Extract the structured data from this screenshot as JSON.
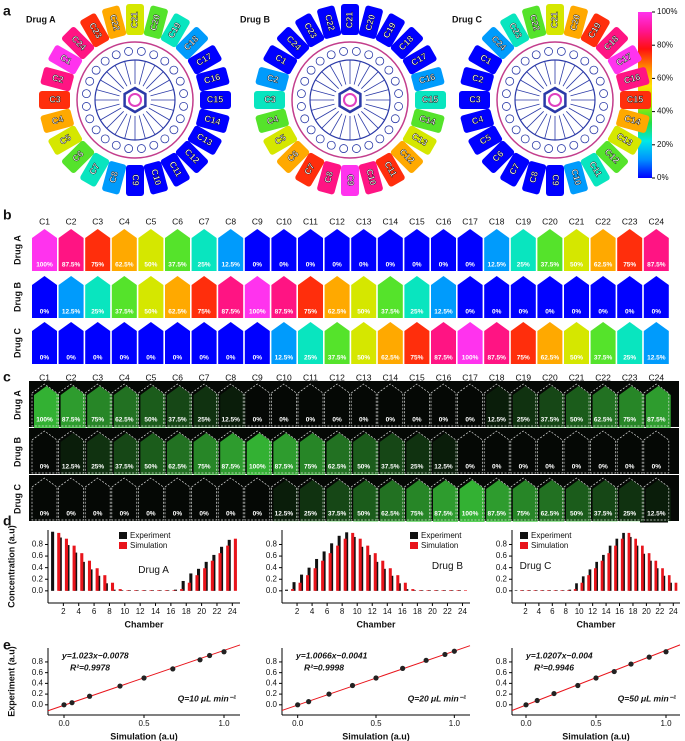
{
  "panel_labels": [
    "a",
    "b",
    "c",
    "d",
    "e"
  ],
  "drugs": [
    "Drug A",
    "Drug B",
    "Drug C"
  ],
  "chambers": [
    "C1",
    "C2",
    "C3",
    "C4",
    "C5",
    "C6",
    "C7",
    "C8",
    "C9",
    "C10",
    "C11",
    "C12",
    "C13",
    "C14",
    "C15",
    "C16",
    "C17",
    "C18",
    "C19",
    "C20",
    "C21",
    "C22",
    "C23",
    "C24"
  ],
  "concentrations": [
    [
      100,
      87.5,
      75,
      62.5,
      50,
      37.5,
      25,
      12.5,
      0,
      0,
      0,
      0,
      0,
      0,
      0,
      0,
      0,
      12.5,
      25,
      37.5,
      50,
      62.5,
      75,
      87.5
    ],
    [
      0,
      12.5,
      25,
      37.5,
      50,
      62.5,
      75,
      87.5,
      100,
      87.5,
      75,
      62.5,
      50,
      37.5,
      25,
      12.5,
      0,
      0,
      0,
      0,
      0,
      0,
      0,
      0
    ],
    [
      0,
      0,
      0,
      0,
      0,
      0,
      0,
      0,
      0,
      12.5,
      25,
      37.5,
      50,
      62.5,
      75,
      87.5,
      100,
      87.5,
      75,
      62.5,
      50,
      37.5,
      25,
      12.5
    ]
  ],
  "concentration_labels": [
    [
      "100%",
      "87.5%",
      "75%",
      "62.5%",
      "50%",
      "37.5%",
      "25%",
      "12.5%",
      "0%",
      "0%",
      "0%",
      "0%",
      "0%",
      "0%",
      "0%",
      "0%",
      "0%",
      "12.5%",
      "25%",
      "37.5%",
      "50%",
      "62.5%",
      "75%",
      "87.5%"
    ],
    [
      "0%",
      "12.5%",
      "25%",
      "37.5%",
      "50%",
      "62.5%",
      "75%",
      "87.5%",
      "100%",
      "87.5%",
      "75%",
      "62.5%",
      "50%",
      "37.5%",
      "25%",
      "12.5%",
      "0%",
      "0%",
      "0%",
      "0%",
      "0%",
      "0%",
      "0%",
      "0%"
    ],
    [
      "0%",
      "0%",
      "0%",
      "0%",
      "0%",
      "0%",
      "0%",
      "0%",
      "0%",
      "12.5%",
      "25%",
      "37.5%",
      "50%",
      "62.5%",
      "75%",
      "87.5%",
      "100%",
      "87.5%",
      "75%",
      "62.5%",
      "50%",
      "37.5%",
      "25%",
      "12.5%"
    ]
  ],
  "colorbar": {
    "lim": [
      0,
      100
    ],
    "ticks": [
      {
        "value": 0,
        "label": "0%"
      },
      {
        "value": 20,
        "label": "20%"
      },
      {
        "value": 40,
        "label": "40%"
      },
      {
        "value": 60,
        "label": "60%"
      },
      {
        "value": 80,
        "label": "80%"
      },
      {
        "value": 100,
        "label": "100%"
      }
    ],
    "colors": [
      "#0000ff",
      "#0090ff",
      "#00e8e8",
      "#22dd44",
      "#aaee00",
      "#ffe000",
      "#ff8800",
      "#ff1010",
      "#ff1493",
      "#ff33ee"
    ]
  },
  "chart_data": [
    {
      "type": "bar",
      "annotation": "Drug A",
      "xlabel": "Chamber",
      "ylabel": "Concentration (a.u)",
      "legend": "upper center",
      "x": [
        1,
        2,
        3,
        4,
        5,
        6,
        7,
        8,
        9,
        10,
        11,
        12,
        13,
        14,
        15,
        16,
        17,
        18,
        19,
        20,
        21,
        22,
        23,
        24
      ],
      "xlim": [
        0,
        25
      ],
      "xticks": [
        2,
        4,
        6,
        8,
        10,
        12,
        14,
        16,
        18,
        20,
        22,
        24
      ],
      "ylim": [
        -0.21,
        1.05
      ],
      "yticks": [
        {
          "value": 0,
          "label": "0.0"
        },
        {
          "value": 0.2,
          "label": "0.2"
        },
        {
          "value": 0.4,
          "label": "0.4"
        },
        {
          "value": 0.6,
          "label": "0.6"
        },
        {
          "value": 0.8,
          "label": "0.8"
        }
      ],
      "series": [
        {
          "name": "Experiment",
          "color": "#111111",
          "values": [
            1.02,
            0.92,
            0.79,
            0.66,
            0.5,
            0.37,
            0.26,
            0.13,
            0.02,
            0.01,
            0.01,
            0.01,
            0.01,
            0.01,
            0.01,
            0.01,
            0.02,
            0.17,
            0.3,
            0.38,
            0.5,
            0.62,
            0.76,
            0.88
          ]
        },
        {
          "name": "Simulation",
          "color": "#e8141b",
          "values": [
            1.0,
            0.9,
            0.78,
            0.65,
            0.52,
            0.39,
            0.27,
            0.14,
            0.03,
            0.01,
            0.01,
            0.01,
            0.01,
            0.01,
            0.01,
            0.01,
            0.03,
            0.14,
            0.27,
            0.39,
            0.52,
            0.65,
            0.78,
            0.9
          ]
        }
      ]
    },
    {
      "type": "bar",
      "annotation": "Drug B",
      "xlabel": "Chamber",
      "legend": "upper right",
      "x": [
        1,
        2,
        3,
        4,
        5,
        6,
        7,
        8,
        9,
        10,
        11,
        12,
        13,
        14,
        15,
        16,
        17,
        18,
        19,
        20,
        21,
        22,
        23,
        24
      ],
      "xlim": [
        0,
        25
      ],
      "xticks": [
        2,
        4,
        6,
        8,
        10,
        12,
        14,
        16,
        18,
        20,
        22,
        24
      ],
      "ylim": [
        -0.21,
        1.05
      ],
      "yticks": [
        {
          "value": 0,
          "label": "0.0"
        },
        {
          "value": 0.2,
          "label": "0.2"
        },
        {
          "value": 0.4,
          "label": "0.4"
        },
        {
          "value": 0.6,
          "label": "0.6"
        },
        {
          "value": 0.8,
          "label": "0.8"
        }
      ],
      "series": [
        {
          "name": "Experiment",
          "color": "#111111",
          "values": [
            0.02,
            0.15,
            0.28,
            0.4,
            0.55,
            0.68,
            0.82,
            0.95,
            1.01,
            0.93,
            0.76,
            0.62,
            0.5,
            0.38,
            0.26,
            0.13,
            0.03,
            0.01,
            0.01,
            0.01,
            0.01,
            0.01,
            0.01,
            0.01
          ]
        },
        {
          "name": "Simulation",
          "color": "#e8141b",
          "values": [
            0.03,
            0.14,
            0.27,
            0.39,
            0.52,
            0.65,
            0.78,
            0.9,
            1.0,
            0.9,
            0.78,
            0.65,
            0.52,
            0.39,
            0.27,
            0.14,
            0.03,
            0.01,
            0.01,
            0.01,
            0.01,
            0.01,
            0.01,
            0.01
          ]
        }
      ]
    },
    {
      "type": "bar",
      "annotation": "Drug C",
      "xlabel": "Chamber",
      "legend": "upper left",
      "x": [
        1,
        2,
        3,
        4,
        5,
        6,
        7,
        8,
        9,
        10,
        11,
        12,
        13,
        14,
        15,
        16,
        17,
        18,
        19,
        20,
        21,
        22,
        23,
        24
      ],
      "xlim": [
        0,
        25
      ],
      "xticks": [
        2,
        4,
        6,
        8,
        10,
        12,
        14,
        16,
        18,
        20,
        22,
        24
      ],
      "ylim": [
        -0.21,
        1.05
      ],
      "yticks": [
        {
          "value": 0,
          "label": "0.0"
        },
        {
          "value": 0.2,
          "label": "0.2"
        },
        {
          "value": 0.4,
          "label": "0.4"
        },
        {
          "value": 0.6,
          "label": "0.6"
        },
        {
          "value": 0.8,
          "label": "0.8"
        }
      ],
      "series": [
        {
          "name": "Experiment",
          "color": "#111111",
          "values": [
            0.01,
            0.01,
            0.01,
            0.01,
            0.01,
            0.01,
            0.01,
            0.01,
            0.02,
            0.13,
            0.25,
            0.37,
            0.5,
            0.62,
            0.78,
            0.9,
            1.0,
            0.93,
            0.78,
            0.64,
            0.52,
            0.39,
            0.26,
            0.14
          ]
        },
        {
          "name": "Simulation",
          "color": "#e8141b",
          "values": [
            0.01,
            0.01,
            0.01,
            0.01,
            0.01,
            0.01,
            0.01,
            0.01,
            0.03,
            0.14,
            0.27,
            0.39,
            0.52,
            0.65,
            0.78,
            0.9,
            1.0,
            0.9,
            0.78,
            0.65,
            0.52,
            0.39,
            0.27,
            0.14
          ]
        }
      ]
    },
    {
      "type": "scatter",
      "xlabel": "Simulation (a.u)",
      "ylabel": "Experiment (a.u)",
      "annotations": [
        "y=1.023x−0.0078",
        "R²=0.9978",
        "Q=10 μL min⁻¹"
      ],
      "x": [
        0,
        0.05,
        0.16,
        0.35,
        0.5,
        0.68,
        0.85,
        0.91,
        1.0
      ],
      "values": [
        0,
        0.04,
        0.16,
        0.35,
        0.5,
        0.67,
        0.84,
        0.92,
        0.99
      ],
      "color": "#222222",
      "fit": {
        "slope": 1.023,
        "intercept": -0.0078,
        "color": "#e8141b"
      },
      "xlim": [
        -0.1,
        1.1
      ],
      "xticks": [
        {
          "value": 0,
          "label": "0.0"
        },
        {
          "value": 0.5,
          "label": "0.5"
        },
        {
          "value": 1,
          "label": "1.0"
        }
      ],
      "ylim": [
        -0.19,
        1.06
      ],
      "yticks": [
        {
          "value": 0,
          "label": "0.0"
        },
        {
          "value": 0.2,
          "label": "0.2"
        },
        {
          "value": 0.4,
          "label": "0.4"
        },
        {
          "value": 0.6,
          "label": "0.6"
        },
        {
          "value": 0.8,
          "label": "0.8"
        }
      ]
    },
    {
      "type": "scatter",
      "xlabel": "Simulation (a.u)",
      "annotations": [
        "y=1.0066x−0.0041",
        "R²=0.9998",
        "Q=20 μL min⁻¹"
      ],
      "x": [
        0,
        0.07,
        0.2,
        0.35,
        0.5,
        0.67,
        0.82,
        0.94,
        1.0
      ],
      "values": [
        0,
        0.06,
        0.2,
        0.36,
        0.5,
        0.68,
        0.83,
        0.94,
        1.0
      ],
      "color": "#222222",
      "fit": {
        "slope": 1.0066,
        "intercept": -0.0041,
        "color": "#e8141b"
      },
      "xlim": [
        -0.1,
        1.1
      ],
      "xticks": [
        {
          "value": 0,
          "label": "0.0"
        },
        {
          "value": 0.5,
          "label": "0.5"
        },
        {
          "value": 1,
          "label": "1.0"
        }
      ],
      "ylim": [
        -0.19,
        1.06
      ],
      "yticks": [
        {
          "value": 0,
          "label": "0.0"
        },
        {
          "value": 0.2,
          "label": "0.2"
        },
        {
          "value": 0.4,
          "label": "0.4"
        },
        {
          "value": 0.6,
          "label": "0.6"
        },
        {
          "value": 0.8,
          "label": "0.8"
        }
      ]
    },
    {
      "type": "scatter",
      "xlabel": "Simulation (a.u)",
      "annotations": [
        "y=1.0207x−0.004",
        "R²=0.9946",
        "Q=50 μL min⁻¹"
      ],
      "x": [
        0,
        0.08,
        0.2,
        0.37,
        0.5,
        0.63,
        0.75,
        0.88,
        1.0
      ],
      "values": [
        0,
        0.08,
        0.21,
        0.36,
        0.5,
        0.62,
        0.76,
        0.89,
        0.99
      ],
      "color": "#222222",
      "fit": {
        "slope": 1.0207,
        "intercept": -0.004,
        "color": "#e8141b"
      },
      "xlim": [
        -0.1,
        1.1
      ],
      "xticks": [
        {
          "value": 0,
          "label": "0.0"
        },
        {
          "value": 0.5,
          "label": "0.5"
        },
        {
          "value": 1,
          "label": "1.0"
        }
      ],
      "ylim": [
        -0.19,
        1.06
      ],
      "yticks": [
        {
          "value": 0,
          "label": "0.0"
        },
        {
          "value": 0.2,
          "label": "0.2"
        },
        {
          "value": 0.4,
          "label": "0.4"
        },
        {
          "value": 0.6,
          "label": "0.6"
        },
        {
          "value": 0.8,
          "label": "0.8"
        }
      ]
    }
  ]
}
